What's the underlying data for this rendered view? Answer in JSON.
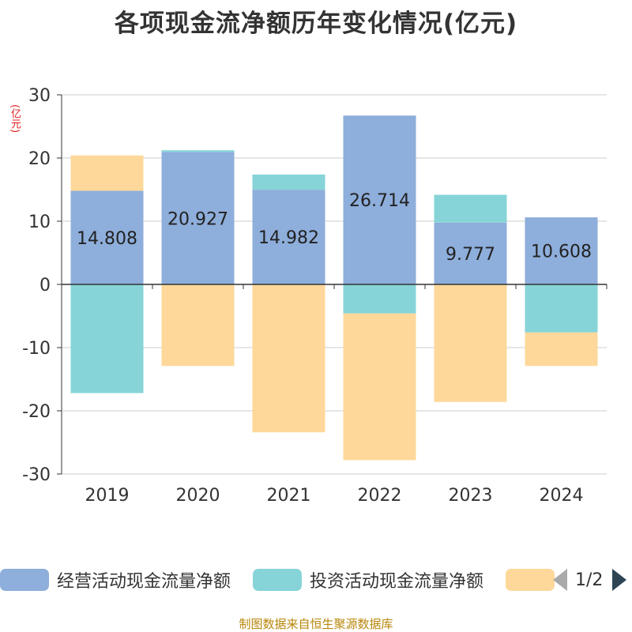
{
  "title": "各项现金流净额历年变化情况(亿元)",
  "unit_label": "(亿元)",
  "source": "制图数据来自恒生聚源数据库",
  "legend": {
    "items": [
      {
        "label": "经营活动现金流量净额",
        "color": "#8eaedb"
      },
      {
        "label": "投资活动现金流量净额",
        "color": "#86d4d8"
      },
      {
        "label": "",
        "color": "#fed89a"
      }
    ],
    "page": "1/2"
  },
  "chart_data": {
    "type": "bar",
    "stacked": true,
    "categories": [
      "2019",
      "2020",
      "2021",
      "2022",
      "2023",
      "2024"
    ],
    "ylim": [
      -30,
      30
    ],
    "yticks": [
      30,
      20,
      10,
      0,
      -10,
      -20,
      -30
    ],
    "grid": true,
    "series": [
      {
        "name": "经营活动现金流量净额",
        "color": "#8eaedb",
        "values": [
          14.808,
          20.927,
          14.982,
          26.714,
          9.777,
          10.608
        ],
        "labels": [
          "14.808",
          "20.927",
          "14.982",
          "26.714",
          "9.777",
          "10.608"
        ]
      },
      {
        "name": "投资活动现金流量净额",
        "color": "#86d4d8",
        "values": [
          -17.2,
          0.3,
          2.4,
          -4.6,
          4.4,
          -7.6
        ]
      },
      {
        "color": "#fed89a",
        "values": [
          5.6,
          -12.9,
          -23.4,
          -23.2,
          -18.6,
          -5.3
        ]
      }
    ]
  }
}
